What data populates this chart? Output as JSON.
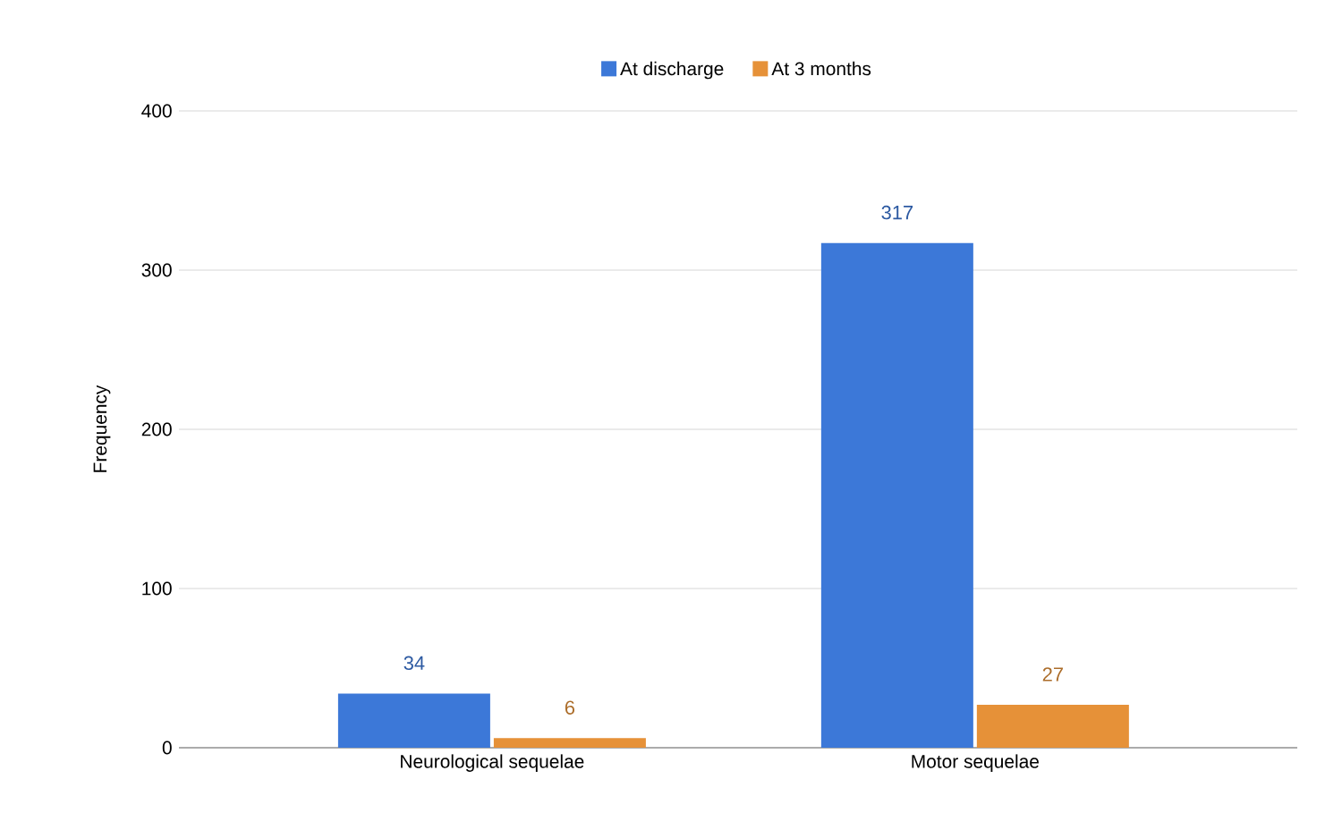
{
  "chart_data": {
    "type": "bar",
    "ylabel": "Frequency",
    "categories": [
      "Neurological sequelae",
      "Motor sequelae"
    ],
    "series": [
      {
        "name": "At discharge",
        "color": "#3c78d8",
        "values": [
          34,
          317
        ]
      },
      {
        "name": "At 3 months",
        "color": "#e69138",
        "values": [
          6,
          27
        ]
      }
    ],
    "ylim": [
      0,
      400
    ],
    "yticks": [
      0,
      100,
      200,
      300,
      400
    ],
    "grid": "y",
    "legend": "top",
    "data_labels": true
  }
}
